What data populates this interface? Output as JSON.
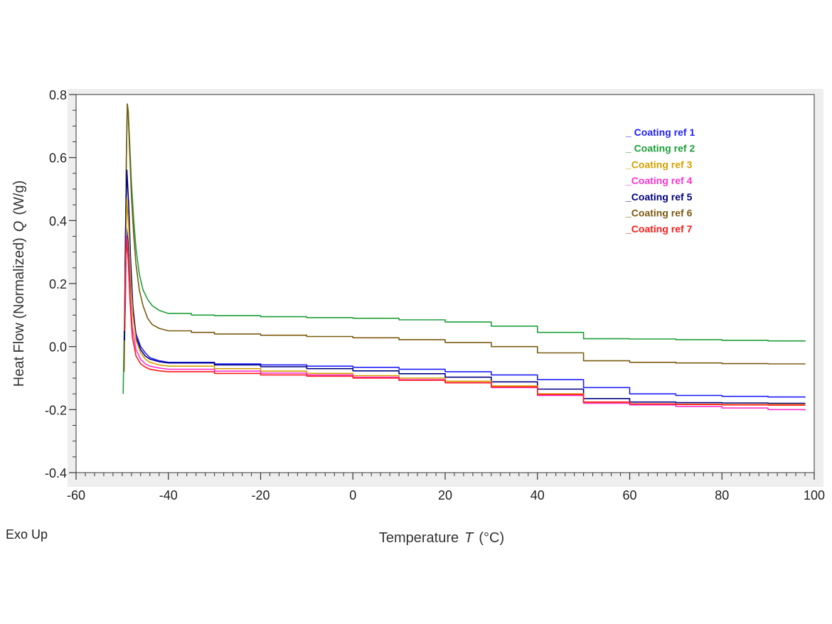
{
  "chart_data": {
    "type": "line",
    "xlabel": "Temperature",
    "xsymbol": "T",
    "xunit": "(°C)",
    "ylabel": "Heat Flow (Normalized)",
    "ysymbol": "Q",
    "yunit": "(W/g)",
    "xlim": [
      -60,
      100
    ],
    "ylim": [
      -0.4,
      0.8
    ],
    "xticks": [
      -60,
      -40,
      -20,
      0,
      20,
      40,
      60,
      80,
      100
    ],
    "yticks": [
      0.8,
      0.6,
      0.4,
      0.2,
      0.0,
      -0.2,
      -0.4
    ],
    "xtick_labels": [
      "-60",
      "-40",
      "-20",
      "0",
      "20",
      "40",
      "60",
      "80",
      "100"
    ],
    "ytick_labels": [
      "0.8",
      "0.6",
      "0.4",
      "0.2",
      "0.0",
      "-0.2",
      "-0.4"
    ],
    "note": "Exo Up",
    "grid": false,
    "legend_position": "top-right",
    "series": [
      {
        "name": "_ Coating ref 1",
        "color": "#1f1fff",
        "x": [
          -49.5,
          -49.3,
          -49.1,
          -48.7,
          -48.3,
          -47.8,
          -47,
          -46,
          -45,
          -44,
          -42,
          -40,
          -30,
          -20,
          -10,
          0,
          10,
          20,
          30,
          40,
          50,
          60,
          70,
          80,
          90,
          98
        ],
        "y": [
          0.02,
          0.15,
          0.38,
          0.33,
          0.22,
          0.12,
          0.04,
          0.0,
          -0.02,
          -0.035,
          -0.045,
          -0.05,
          -0.055,
          -0.058,
          -0.062,
          -0.066,
          -0.072,
          -0.08,
          -0.09,
          -0.105,
          -0.13,
          -0.15,
          -0.155,
          -0.158,
          -0.16,
          -0.162
        ]
      },
      {
        "name": "_ Coating ref 2",
        "color": "#1e9e3a",
        "x": [
          -49.8,
          -49.4,
          -49.1,
          -48.9,
          -48.7,
          -48.4,
          -48,
          -47.5,
          -47,
          -46.3,
          -45.5,
          -44.5,
          -43.5,
          -42,
          -40,
          -35,
          -30,
          -20,
          -10,
          0,
          10,
          20,
          30,
          40,
          50,
          60,
          70,
          80,
          90,
          98
        ],
        "y": [
          -0.15,
          0.2,
          0.6,
          0.77,
          0.75,
          0.65,
          0.52,
          0.4,
          0.31,
          0.23,
          0.18,
          0.15,
          0.13,
          0.115,
          0.105,
          0.1,
          0.098,
          0.095,
          0.092,
          0.09,
          0.085,
          0.078,
          0.065,
          0.045,
          0.025,
          0.024,
          0.022,
          0.02,
          0.018,
          0.016
        ]
      },
      {
        "name": "_Coating ref 3",
        "color": "#d4a000",
        "x": [
          -49.5,
          -49.2,
          -49.0,
          -48.6,
          -48.2,
          -47.7,
          -47,
          -46,
          -45,
          -44,
          -42,
          -40,
          -30,
          -20,
          -10,
          0,
          10,
          20,
          30,
          40,
          50,
          60,
          70,
          80,
          90,
          98
        ],
        "y": [
          0.05,
          0.3,
          0.47,
          0.38,
          0.22,
          0.1,
          0.02,
          -0.02,
          -0.04,
          -0.05,
          -0.058,
          -0.062,
          -0.07,
          -0.078,
          -0.085,
          -0.092,
          -0.1,
          -0.11,
          -0.125,
          -0.15,
          -0.178,
          -0.182,
          -0.183,
          -0.184,
          -0.184,
          -0.185
        ]
      },
      {
        "name": "_Coating ref 4",
        "color": "#ff33cc",
        "x": [
          -49.5,
          -49.3,
          -49.1,
          -48.7,
          -48.3,
          -47.8,
          -47,
          -46,
          -45,
          -44,
          -42,
          -40,
          -30,
          -20,
          -10,
          0,
          10,
          20,
          30,
          40,
          50,
          60,
          70,
          80,
          90,
          98
        ],
        "y": [
          0.05,
          0.22,
          0.34,
          0.28,
          0.16,
          0.06,
          -0.01,
          -0.04,
          -0.055,
          -0.062,
          -0.068,
          -0.072,
          -0.078,
          -0.084,
          -0.09,
          -0.097,
          -0.105,
          -0.115,
          -0.13,
          -0.155,
          -0.18,
          -0.185,
          -0.19,
          -0.195,
          -0.2,
          -0.203
        ]
      },
      {
        "name": "_Coating ref 5",
        "color": "#000080",
        "x": [
          -49.5,
          -49.3,
          -49.0,
          -48.6,
          -48.2,
          -47.7,
          -47,
          -46,
          -45,
          -44,
          -42,
          -40,
          -30,
          -20,
          -10,
          0,
          10,
          20,
          30,
          40,
          50,
          60,
          70,
          80,
          90,
          98
        ],
        "y": [
          0.02,
          0.35,
          0.56,
          0.45,
          0.28,
          0.13,
          0.03,
          -0.01,
          -0.03,
          -0.04,
          -0.048,
          -0.052,
          -0.058,
          -0.064,
          -0.07,
          -0.077,
          -0.086,
          -0.097,
          -0.112,
          -0.135,
          -0.165,
          -0.176,
          -0.178,
          -0.179,
          -0.18,
          -0.181
        ]
      },
      {
        "name": "_Coating ref 6",
        "color": "#7a5a10",
        "x": [
          -49.6,
          -49.3,
          -49.1,
          -48.9,
          -48.7,
          -48.4,
          -48,
          -47.5,
          -47,
          -46.3,
          -45.5,
          -44.5,
          -43.5,
          -42,
          -40,
          -35,
          -30,
          -20,
          -10,
          0,
          10,
          20,
          30,
          40,
          50,
          60,
          70,
          80,
          90,
          98
        ],
        "y": [
          -0.08,
          0.25,
          0.6,
          0.77,
          0.74,
          0.62,
          0.48,
          0.35,
          0.26,
          0.18,
          0.13,
          0.09,
          0.07,
          0.058,
          0.05,
          0.045,
          0.04,
          0.036,
          0.032,
          0.028,
          0.022,
          0.013,
          0.0,
          -0.02,
          -0.045,
          -0.05,
          -0.052,
          -0.054,
          -0.055,
          -0.056
        ]
      },
      {
        "name": "_Coating ref 7",
        "color": "#ff1a1a",
        "x": [
          -49.5,
          -49.3,
          -49.1,
          -48.7,
          -48.3,
          -47.8,
          -47,
          -46,
          -45,
          -44,
          -42,
          -40,
          -30,
          -20,
          -10,
          0,
          10,
          20,
          30,
          40,
          50,
          60,
          70,
          80,
          90,
          98
        ],
        "y": [
          0.05,
          0.22,
          0.35,
          0.27,
          0.14,
          0.03,
          -0.03,
          -0.055,
          -0.065,
          -0.072,
          -0.077,
          -0.08,
          -0.085,
          -0.09,
          -0.094,
          -0.1,
          -0.107,
          -0.115,
          -0.128,
          -0.152,
          -0.176,
          -0.182,
          -0.184,
          -0.185,
          -0.186,
          -0.187
        ]
      }
    ]
  }
}
